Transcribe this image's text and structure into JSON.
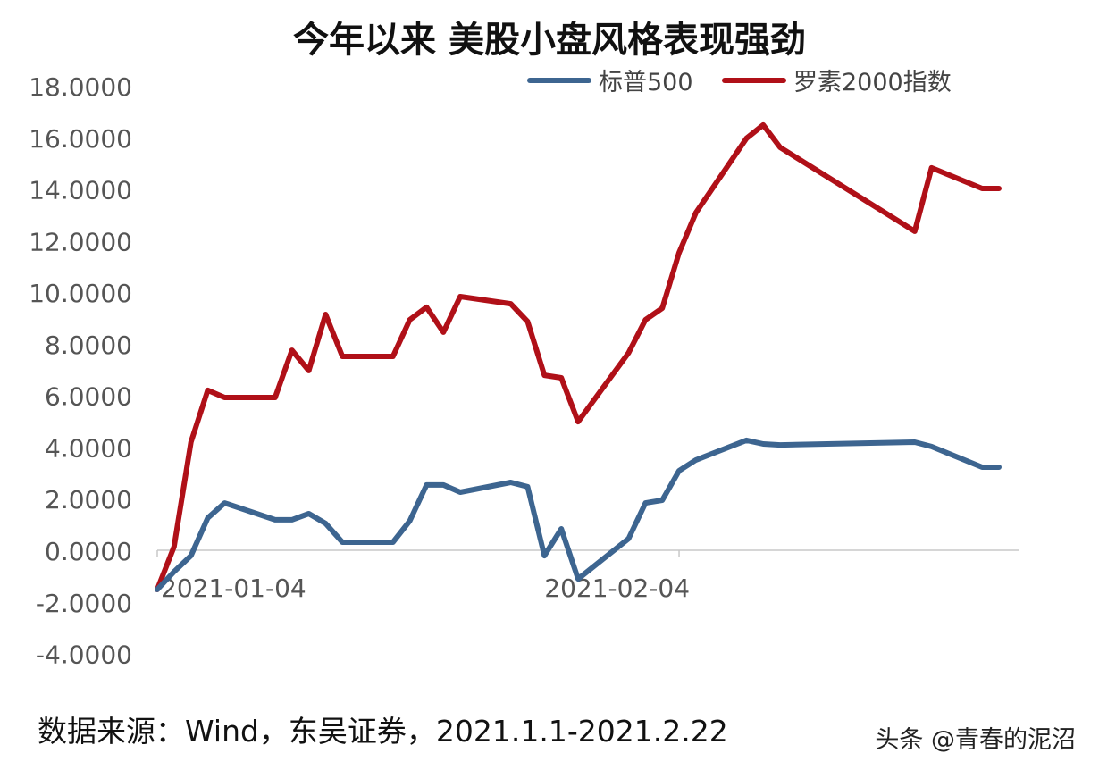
{
  "chart_data": {
    "type": "line",
    "title": "今年以来 美股小盘风格表现强劲",
    "xlabel": "",
    "ylabel": "",
    "ylim": [
      -4,
      18
    ],
    "yticks": [
      "18.0000",
      "16.0000",
      "14.0000",
      "12.0000",
      "10.0000",
      "8.0000",
      "6.0000",
      "4.0000",
      "2.0000",
      "0.0000",
      "-2.0000",
      "-4.0000"
    ],
    "xticks": [
      "2021-01-04",
      "2021-02-04"
    ],
    "legend_position": "top-right",
    "grid": false,
    "x": [
      "2021-01-04",
      "2021-01-05",
      "2021-01-06",
      "2021-01-07",
      "2021-01-08",
      "2021-01-11",
      "2021-01-12",
      "2021-01-13",
      "2021-01-14",
      "2021-01-15",
      "2021-01-18",
      "2021-01-19",
      "2021-01-20",
      "2021-01-21",
      "2021-01-22",
      "2021-01-25",
      "2021-01-26",
      "2021-01-27",
      "2021-01-28",
      "2021-01-29",
      "2021-02-01",
      "2021-02-02",
      "2021-02-03",
      "2021-02-04",
      "2021-02-05",
      "2021-02-08",
      "2021-02-09",
      "2021-02-10",
      "2021-02-18",
      "2021-02-19",
      "2021-02-22",
      "2021-02-23"
    ],
    "series": [
      {
        "name": "标普500",
        "color": "#3d6590",
        "values": [
          -1.52,
          -0.83,
          -0.21,
          1.25,
          1.83,
          1.18,
          1.18,
          1.42,
          1.04,
          0.31,
          0.31,
          1.14,
          2.53,
          2.53,
          2.25,
          2.63,
          2.46,
          -0.21,
          0.83,
          -1.11,
          0.45,
          1.83,
          1.94,
          3.08,
          3.5,
          4.26,
          4.12,
          4.08,
          4.19,
          4.02,
          3.22,
          3.22
        ]
      },
      {
        "name": "罗素2000指数",
        "color": "#b01018",
        "values": [
          -1.52,
          0.14,
          4.19,
          6.2,
          5.92,
          5.92,
          7.75,
          6.96,
          9.14,
          7.51,
          7.51,
          8.93,
          9.42,
          8.45,
          9.83,
          9.55,
          8.86,
          6.78,
          6.68,
          4.98,
          7.65,
          8.93,
          9.38,
          11.53,
          13.08,
          15.96,
          16.48,
          15.61,
          12.36,
          14.82,
          14.02,
          14.02
        ]
      }
    ]
  },
  "source": "数据来源：Wind，东吴证券，2021.1.1-2021.2.22",
  "watermark": "头条 @青春的泥沼"
}
